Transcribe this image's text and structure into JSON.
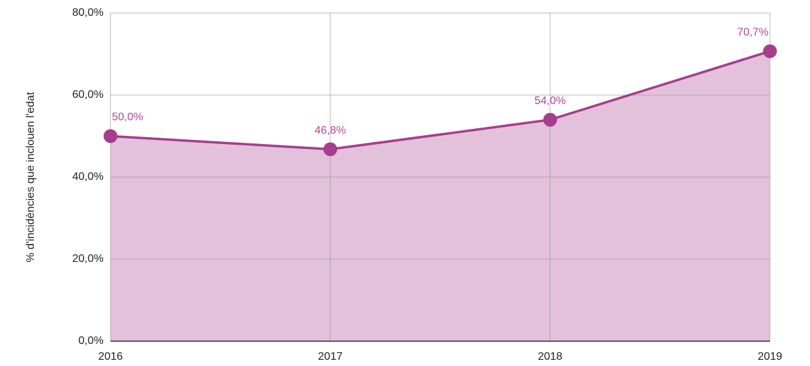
{
  "chart_data": {
    "type": "area",
    "y_label": "% d'incidències que inclouen l'edat",
    "x": [
      2016,
      2017,
      2018,
      2019
    ],
    "series": [
      {
        "color": "#a63d8f",
        "fill": "#e3c1da",
        "values": [
          50.0,
          46.8,
          54.0,
          70.7
        ],
        "value_labels": [
          "50,0%",
          "46,8%",
          "54,0%",
          "70,7%"
        ]
      }
    ],
    "xlim": [
      2016,
      2019
    ],
    "xticks": [
      2016,
      2017,
      2018,
      2019
    ],
    "ylim": [
      0,
      80
    ],
    "yticks": [
      {
        "value": 0,
        "label": "0,0%"
      },
      {
        "value": 20,
        "label": "20,0%"
      },
      {
        "value": 40,
        "label": "40,0%"
      },
      {
        "value": 60,
        "label": "60,0%"
      },
      {
        "value": 80,
        "label": "80,0%"
      }
    ],
    "grid": true
  }
}
